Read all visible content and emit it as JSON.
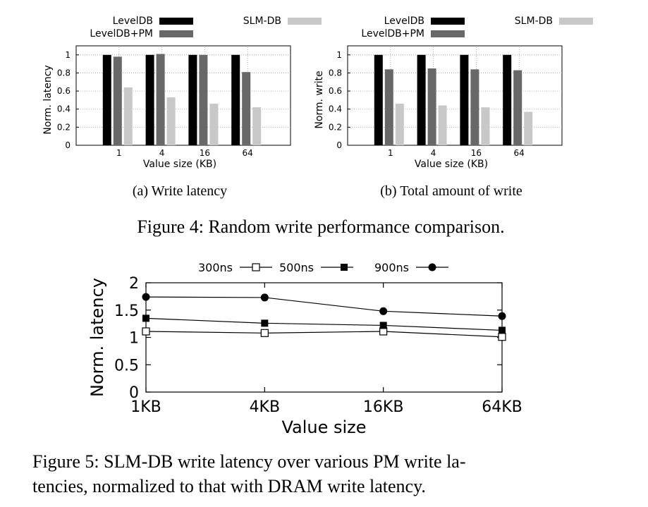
{
  "chart_data": [
    {
      "id": "fig4a",
      "type": "bar",
      "categories": [
        "1",
        "4",
        "16",
        "64"
      ],
      "series": [
        {
          "name": "LevelDB",
          "values": [
            1.0,
            1.0,
            1.0,
            1.0
          ],
          "color": "#000000"
        },
        {
          "name": "LevelDB+PM",
          "values": [
            0.98,
            1.01,
            1.0,
            0.81
          ],
          "color": "#686868"
        },
        {
          "name": "SLM-DB",
          "values": [
            0.64,
            0.53,
            0.46,
            0.42
          ],
          "color": "#c8c8c8"
        }
      ],
      "yticks": [
        "0",
        "0.2",
        "0.4",
        "0.6",
        "0.8",
        "1"
      ],
      "ylim": [
        0,
        1.1
      ],
      "ylabel": "Norm. latency",
      "xlabel": "Value size (KB)",
      "legend": "top",
      "grid": true,
      "caption": "(a)  Write latency"
    },
    {
      "id": "fig4b",
      "type": "bar",
      "categories": [
        "1",
        "4",
        "16",
        "64"
      ],
      "series": [
        {
          "name": "LevelDB",
          "values": [
            1.0,
            1.0,
            1.0,
            1.0
          ],
          "color": "#000000"
        },
        {
          "name": "LevelDB+PM",
          "values": [
            0.84,
            0.85,
            0.84,
            0.83
          ],
          "color": "#686868"
        },
        {
          "name": "SLM-DB",
          "values": [
            0.46,
            0.44,
            0.42,
            0.37
          ],
          "color": "#c8c8c8"
        }
      ],
      "yticks": [
        "0",
        "0.2",
        "0.4",
        "0.6",
        "0.8",
        "1"
      ],
      "ylim": [
        0,
        1.1
      ],
      "ylabel": "Norm. write",
      "xlabel": "Value size (KB)",
      "legend": "top",
      "grid": true,
      "caption": "(b)  Total amount of write"
    },
    {
      "id": "fig5",
      "type": "line",
      "categories": [
        "1KB",
        "4KB",
        "16KB",
        "64KB"
      ],
      "series": [
        {
          "name": "300ns",
          "values": [
            1.11,
            1.08,
            1.11,
            1.01
          ],
          "marker": "open-square"
        },
        {
          "name": "500ns",
          "values": [
            1.35,
            1.26,
            1.22,
            1.13
          ],
          "marker": "filled-square"
        },
        {
          "name": "900ns",
          "values": [
            1.74,
            1.73,
            1.48,
            1.39
          ],
          "marker": "filled-circle"
        }
      ],
      "yticks": [
        "0",
        "0.5",
        "1",
        "1.5",
        "2"
      ],
      "ylim": [
        0,
        2
      ],
      "ylabel": "Norm. latency",
      "xlabel": "Value size",
      "legend": "top",
      "grid": false
    }
  ],
  "captions": {
    "fig4": "Figure 4: Random write performance comparison.",
    "fig5_line1": "Figure 5: SLM-DB write latency over various PM write la-",
    "fig5_line2": "tencies, normalized to that with DRAM write latency."
  }
}
